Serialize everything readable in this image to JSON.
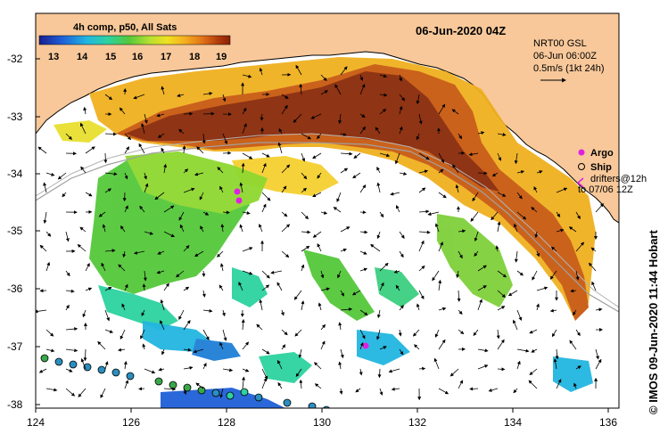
{
  "title": "06-Jun-2020 04Z",
  "colorbar": {
    "title": "4h comp, p50, All Sats",
    "ticks": [
      "13",
      "14",
      "15",
      "16",
      "17",
      "18",
      "19"
    ],
    "stops": [
      "#1a1f8f",
      "#1f5fd8",
      "#22b6e0",
      "#2dd2a0",
      "#55c83a",
      "#b8e030",
      "#f0e020",
      "#f5b020",
      "#e07018",
      "#b03a0a",
      "#8a2008"
    ]
  },
  "current_info": {
    "line1": "NRT00 GSL",
    "line2": "06-Jun 06:00Z",
    "line3": "0.5m/s (1kt 24h)"
  },
  "legend": {
    "argo": "Argo",
    "ship": "Ship",
    "drifters_line1": "drifters@12h",
    "drifters_line2": "to 07/06 12Z"
  },
  "axes": {
    "lat_labels": [
      "-32",
      "-33",
      "-34",
      "-35",
      "-36",
      "-37",
      "-38"
    ],
    "lon_labels": [
      "124",
      "126",
      "128",
      "130",
      "132",
      "134",
      "136"
    ]
  },
  "credit": "© IMOS 09-Jun-2020 11:44 Hobart",
  "colors": {
    "land": "#f8c89a",
    "ocean": "#ffffff",
    "argo": "#e020e0",
    "ship_fill": "#2a8fc0"
  }
}
